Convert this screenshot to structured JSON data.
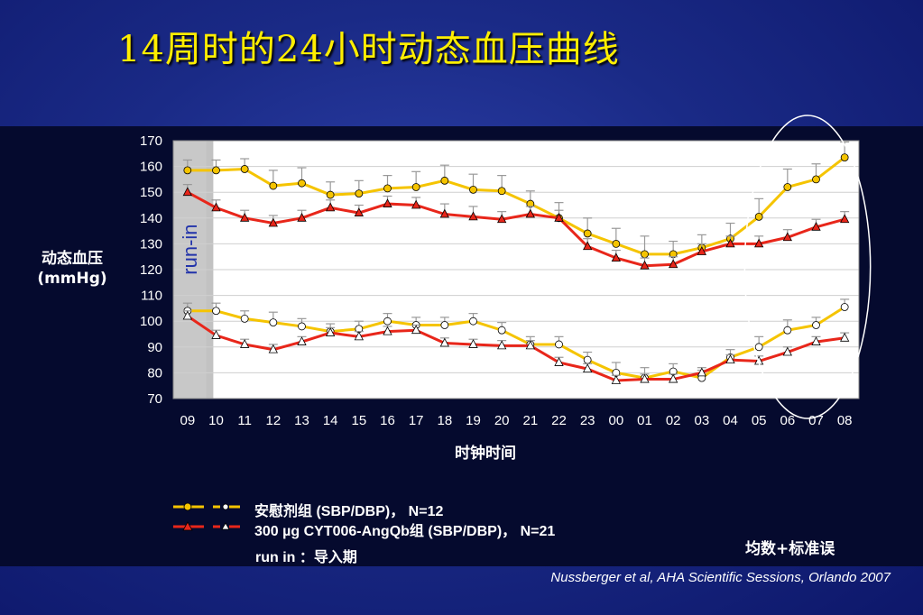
{
  "title": "14周时的24小时动态血压曲线",
  "y_axis_label_line1": "动态血压",
  "y_axis_label_line2": "(mmHg)",
  "x_axis_label": "时钟时间",
  "runin_label": "run-in",
  "legend": {
    "placebo": "安慰剂组 (SBP/DBP)， N=12",
    "treatment": "300 µg CYT006-AngQb组 (SBP/DBP)， N=21",
    "runin_note": "run in ：导入期"
  },
  "error_note": "均数+标准误",
  "citation": "Nussberger et al, AHA Scientific Sessions, Orlando 2007",
  "colors": {
    "placebo": "#f5c400",
    "treatment": "#e8261a",
    "plot_bg": "#ffffff",
    "runin_band": "#c8c8c8"
  },
  "chart_data": {
    "type": "line",
    "categories": [
      "09",
      "10",
      "11",
      "12",
      "13",
      "14",
      "15",
      "16",
      "17",
      "18",
      "19",
      "20",
      "21",
      "22",
      "23",
      "00",
      "01",
      "02",
      "03",
      "04",
      "05",
      "06",
      "07",
      "08"
    ],
    "ylim": [
      70,
      170
    ],
    "yticks": [
      70,
      80,
      90,
      100,
      110,
      120,
      130,
      140,
      150,
      160,
      170
    ],
    "runin_range": [
      0,
      1
    ],
    "highlight_ellipse_categories": [
      "05",
      "08"
    ],
    "series": [
      {
        "group": "placebo",
        "measure": "SBP",
        "marker": "circle",
        "values": [
          158.5,
          158.5,
          159,
          152.5,
          153.5,
          149,
          149.5,
          151.5,
          152,
          154.5,
          151,
          150.5,
          145.5,
          140,
          134,
          130,
          126,
          126,
          128.5,
          132,
          140.5,
          152,
          155,
          163.5
        ],
        "err": [
          4,
          4,
          4,
          6,
          6,
          5,
          5,
          5,
          6,
          6,
          6,
          6,
          5,
          6,
          6,
          6,
          7,
          5,
          5,
          6,
          7,
          7,
          6,
          6
        ]
      },
      {
        "group": "treatment",
        "measure": "SBP",
        "marker": "triangle",
        "values": [
          150,
          144,
          140,
          138,
          140,
          144,
          142,
          145.5,
          145,
          141.5,
          140.5,
          139.5,
          141.5,
          140,
          129,
          124.5,
          121.5,
          122,
          127,
          130,
          130,
          132.5,
          136.5,
          139.5
        ],
        "err": [
          3,
          3,
          3,
          3,
          3,
          3,
          3,
          3,
          3,
          4,
          4,
          3,
          3,
          3,
          3,
          3,
          3,
          3,
          3,
          3,
          3,
          3,
          3,
          3
        ]
      },
      {
        "group": "placebo",
        "measure": "DBP",
        "marker": "circle",
        "values": [
          104,
          104,
          101,
          99.5,
          98,
          96,
          97,
          100,
          98.5,
          98.5,
          100,
          96.5,
          91,
          91,
          85,
          80,
          78,
          80.5,
          78,
          86,
          90,
          96.5,
          98.5,
          105.5
        ],
        "err": [
          3,
          3,
          3,
          4,
          3,
          3,
          3,
          3,
          3,
          3,
          3,
          3,
          3,
          3,
          3,
          4,
          4,
          3,
          3,
          3,
          4,
          4,
          3,
          3
        ]
      },
      {
        "group": "treatment",
        "measure": "DBP",
        "marker": "triangle",
        "values": [
          102,
          94.5,
          91,
          89,
          92,
          95.5,
          94,
          96,
          96.5,
          91.5,
          91,
          90.5,
          90.5,
          84,
          81.5,
          77,
          77.5,
          77.5,
          80,
          85,
          84.5,
          88,
          92,
          93.5
        ],
        "err": [
          2,
          2,
          2,
          2,
          2,
          2,
          2,
          2,
          2,
          2,
          2,
          2,
          2,
          2,
          2,
          2,
          2,
          2,
          2,
          2,
          2,
          2,
          2,
          2
        ]
      }
    ]
  }
}
